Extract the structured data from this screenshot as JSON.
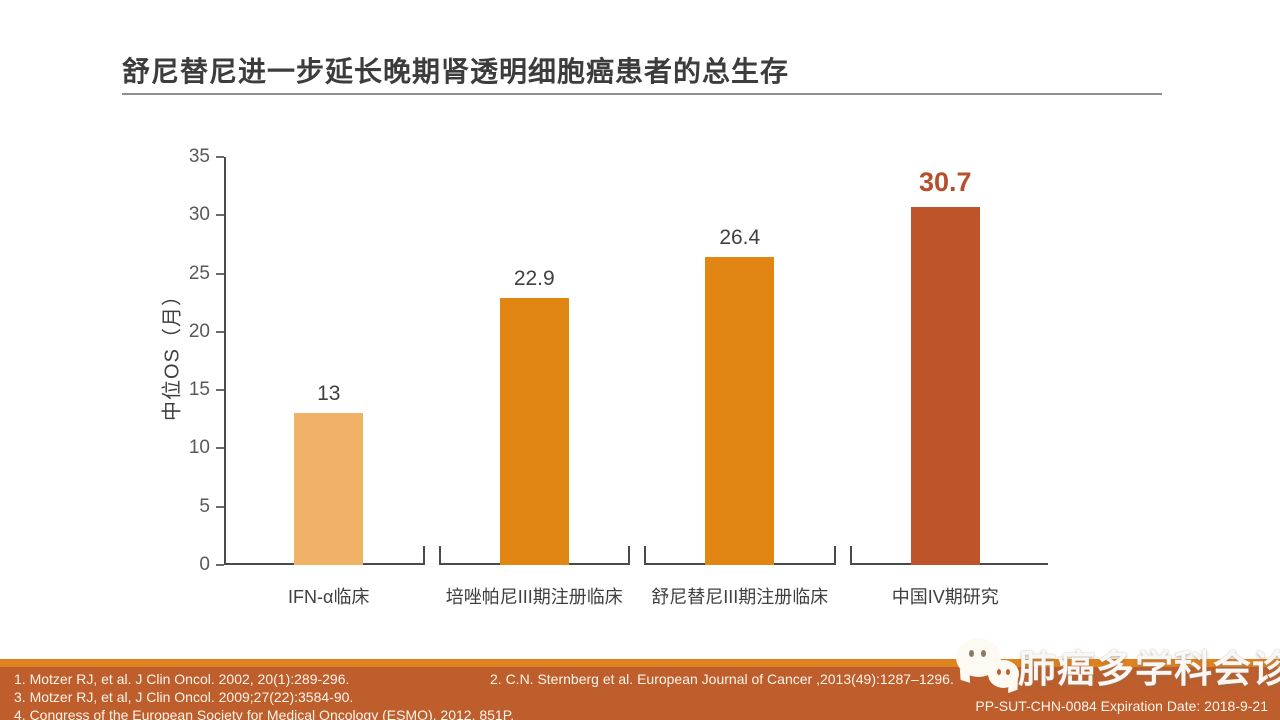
{
  "title": "舒尼替尼进一步延长晚期肾透明细胞癌患者的总生存",
  "chart_data": {
    "type": "bar",
    "title": "",
    "xlabel": "",
    "ylabel": "中位OS（月）",
    "ylim": [
      0,
      35
    ],
    "ytick_interval": 5,
    "grid": false,
    "legend_position": "none",
    "categories": [
      "IFN-α临床",
      "培唑帕尼III期注册临床",
      "舒尼替尼III期注册临床",
      "中国IV期研究"
    ],
    "values": [
      13,
      22.9,
      26.4,
      30.7
    ],
    "value_labels": [
      "13",
      "22.9",
      "26.4",
      "30.7"
    ],
    "bar_colors": [
      "#f0b266",
      "#e28613",
      "#e28613",
      "#be5429"
    ],
    "value_label_colors": [
      "#404040",
      "#404040",
      "#404040",
      "#b5502a"
    ],
    "highlight_index": 3
  },
  "footer": {
    "references": [
      "1. Motzer RJ, et al. J Clin Oncol. 2002, 20(1):289-296.",
      "2. C.N. Sternberg et al. European Journal of Cancer ,2013(49):1287–1296.",
      "3. Motzer RJ, et al, J Clin Oncol. 2009;27(22):3584-90.",
      "4. Congress of the European Society for Medical Oncology (ESMO), 2012. 851P."
    ],
    "code": "PP-SUT-CHN-0084  Expiration Date: 2018-9-21",
    "watermark": "肺癌多学科会诊"
  },
  "colors": {
    "accent_orange": "#e28613",
    "light_orange": "#f0b266",
    "brick_red": "#be5429",
    "footer_background": "#bd5e2c",
    "footer_strip": "#e0821e",
    "axis": "#4a4a4a",
    "tick_label": "#595959",
    "title_text": "#3c3c3c"
  }
}
